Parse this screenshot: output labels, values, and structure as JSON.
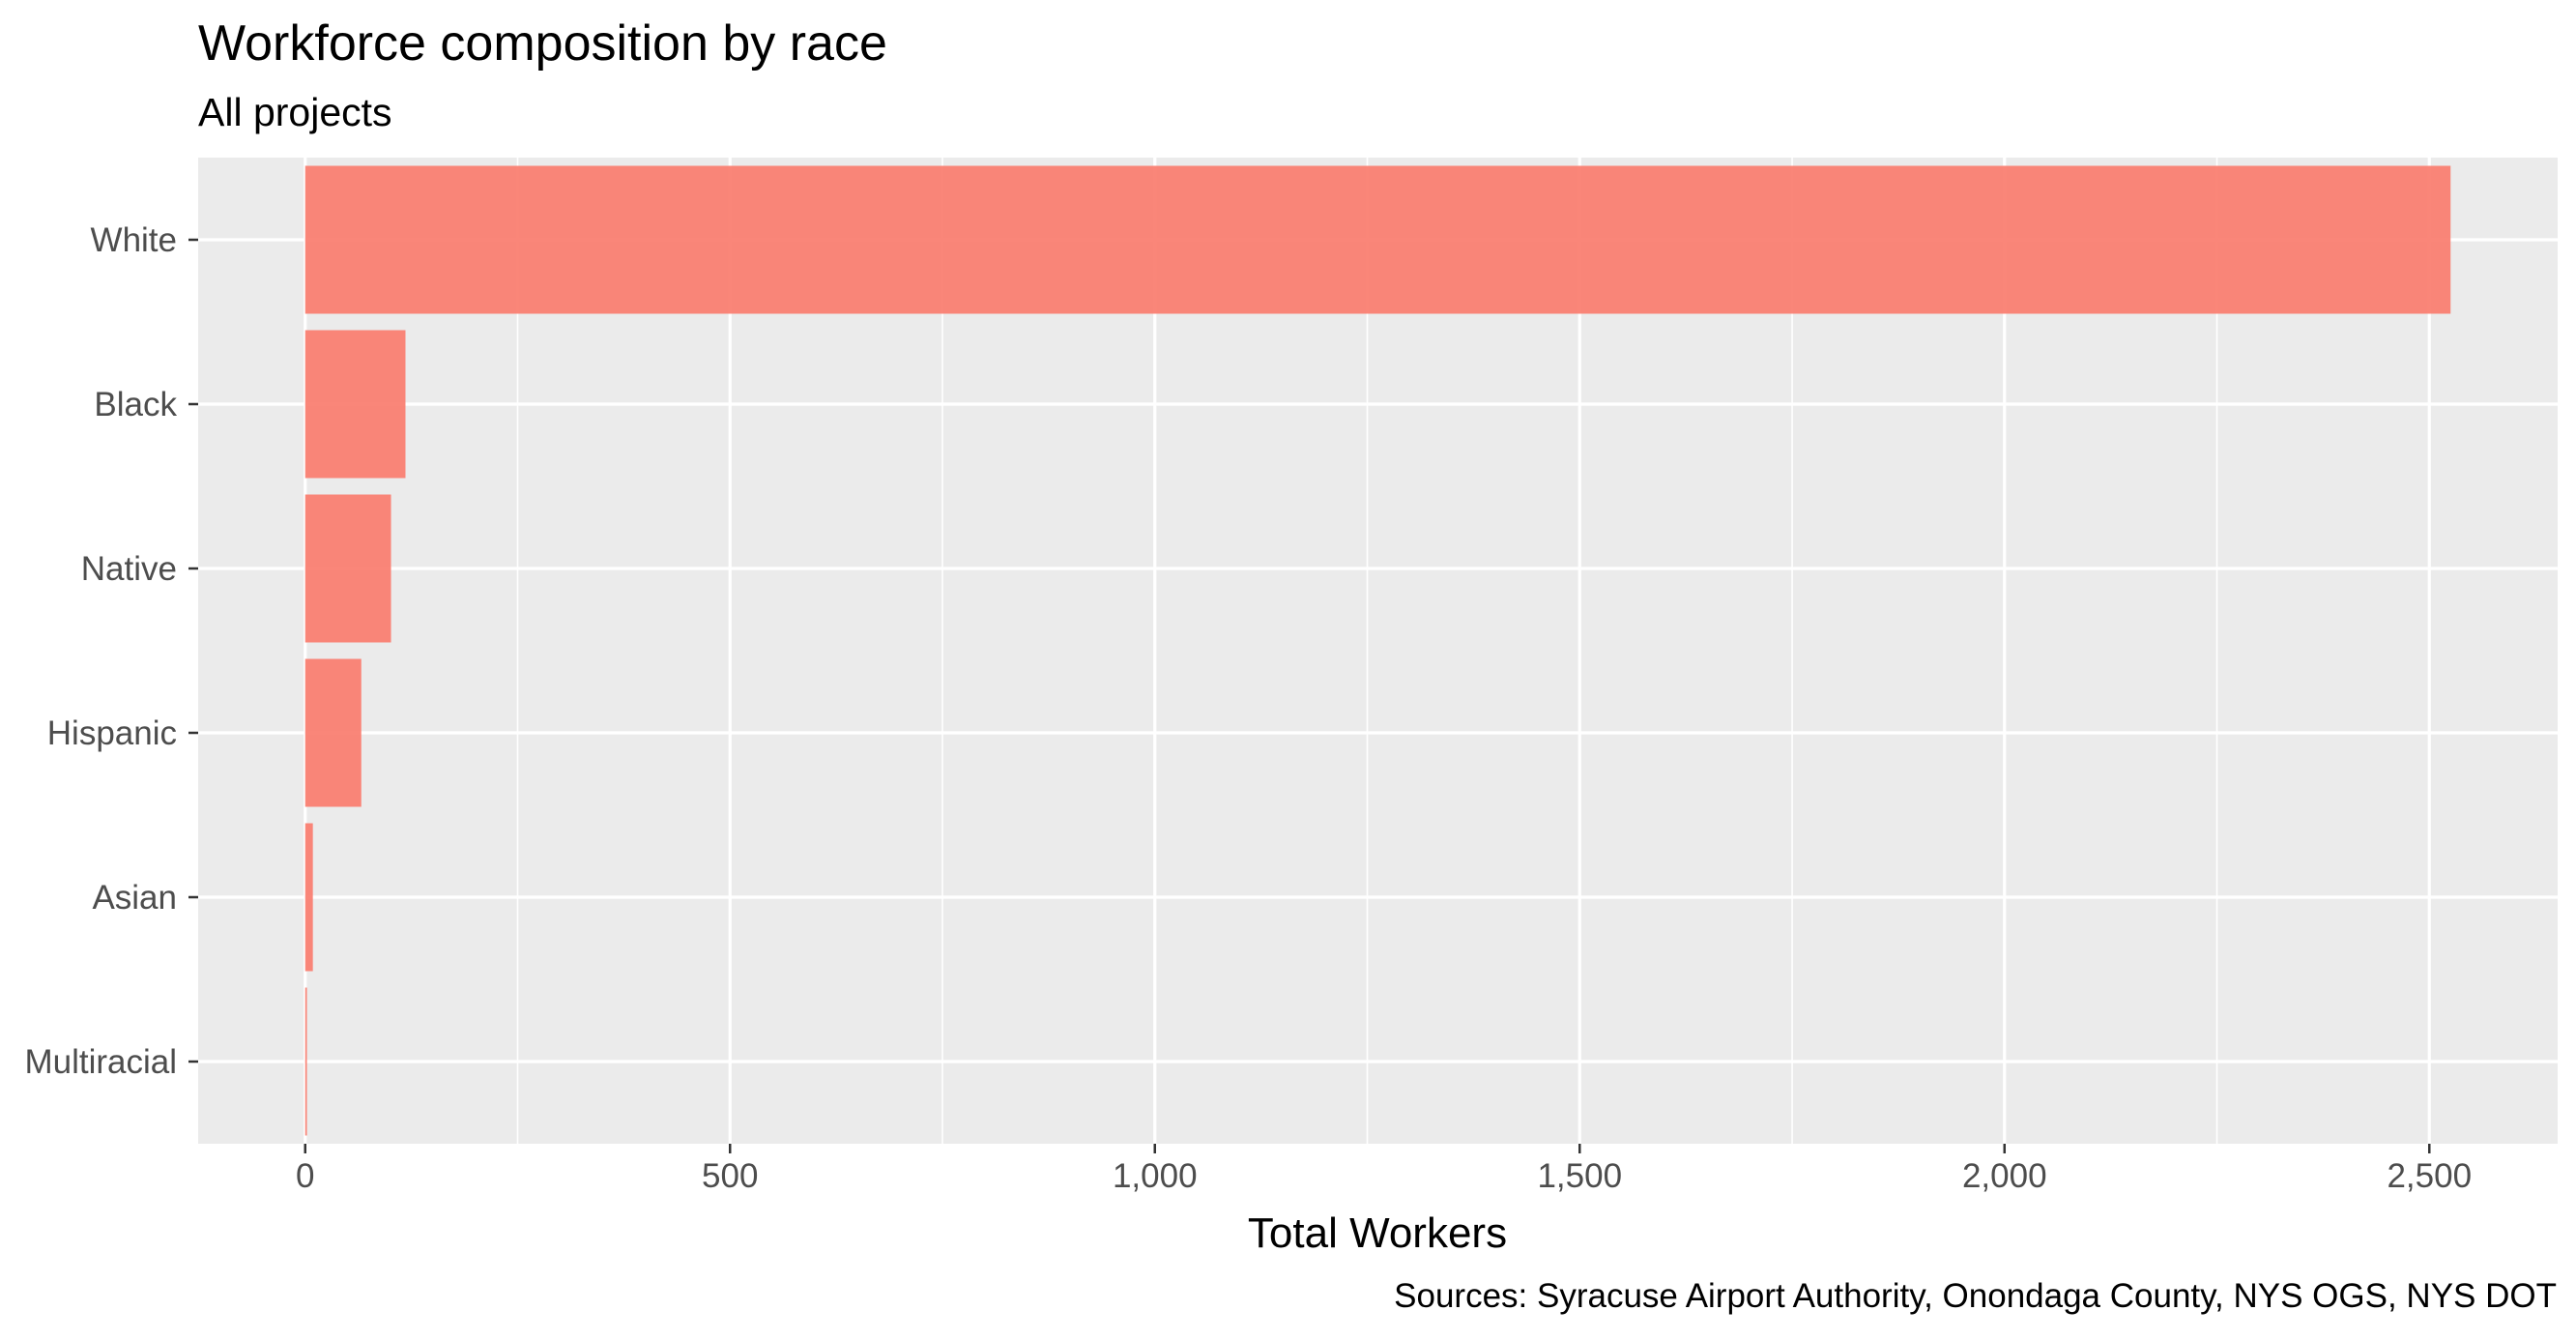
{
  "chart_data": {
    "type": "bar",
    "orientation": "horizontal",
    "title": "Workforce composition by race",
    "subtitle": "All projects",
    "xlabel": "Total Workers",
    "ylabel": "",
    "caption": "Sources: Syracuse Airport Authority, Onondaga County, NYS OGS, NYS DOT",
    "categories": [
      "White",
      "Black",
      "Native",
      "Hispanic",
      "Asian",
      "Multiracial"
    ],
    "values": [
      2525,
      118,
      101,
      66,
      9,
      2
    ],
    "xlim": [
      -126,
      2651
    ],
    "xticks": [
      0,
      500,
      1000,
      1500,
      2000,
      2500
    ],
    "xtick_labels": [
      "0",
      "500",
      "1,000",
      "1,500",
      "2,000",
      "2,500"
    ],
    "grid": true,
    "legend": "none",
    "colors": {
      "bar": "#FA8072",
      "panel": "#EBEBEB",
      "grid": "#FFFFFF"
    }
  }
}
